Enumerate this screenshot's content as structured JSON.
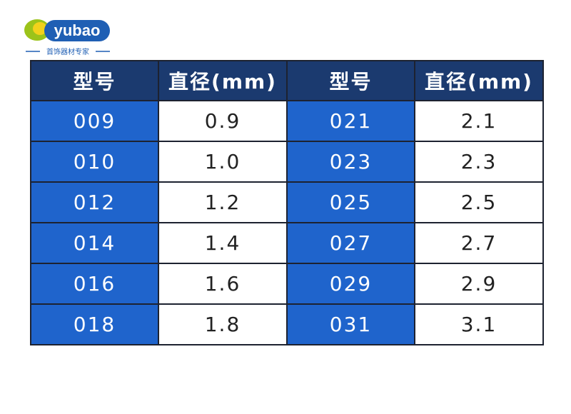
{
  "logo": {
    "brand": "yubao",
    "tagline": "首饰器材专家"
  },
  "table": {
    "header": [
      "型号",
      "直径(mm)",
      "型号",
      "直径(mm)"
    ],
    "rows": [
      [
        "009",
        "0.9",
        "021",
        "2.1"
      ],
      [
        "010",
        "1.0",
        "023",
        "2.3"
      ],
      [
        "012",
        "1.2",
        "025",
        "2.5"
      ],
      [
        "014",
        "1.4",
        "027",
        "2.7"
      ],
      [
        "016",
        "1.6",
        "029",
        "2.9"
      ],
      [
        "018",
        "1.8",
        "031",
        "3.1"
      ]
    ]
  }
}
